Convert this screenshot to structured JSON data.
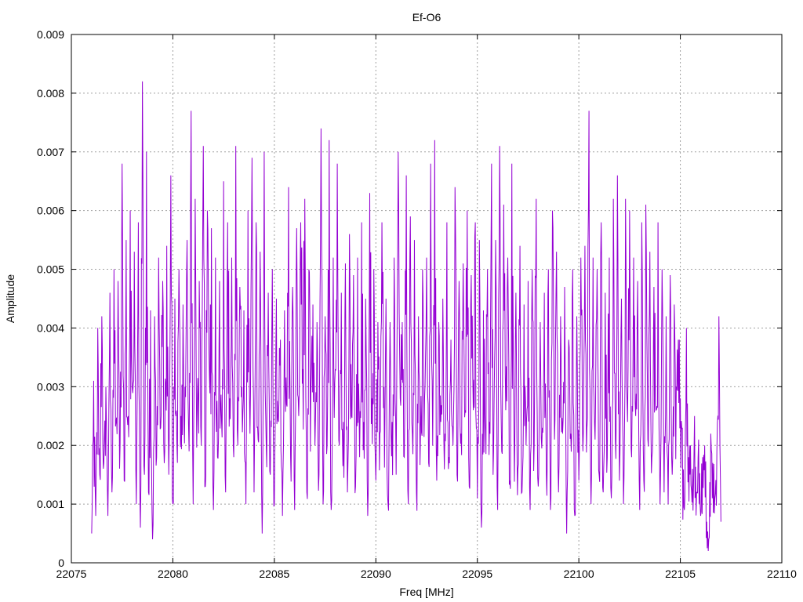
{
  "chart_data": {
    "type": "line",
    "title": "Ef-O6",
    "xlabel": "Freq [MHz]",
    "ylabel": "Amplitude",
    "xlim": [
      22075,
      22110
    ],
    "ylim": [
      0,
      0.009
    ],
    "x_ticks": [
      "22075",
      "22080",
      "22085",
      "22090",
      "22095",
      "22100",
      "22105",
      "22110"
    ],
    "y_ticks": [
      "0",
      "0.001",
      "0.002",
      "0.003",
      "0.004",
      "0.005",
      "0.006",
      "0.007",
      "0.008",
      "0.009"
    ],
    "grid": true,
    "series_color": "#9400d3",
    "series": [
      {
        "x_start": 22076.0,
        "x_step": 0.1,
        "values": [
          0.0005,
          0.0031,
          0.0008,
          0.004,
          0.0015,
          0.0042,
          0.0017,
          0.003,
          0.0008,
          0.0046,
          0.0012,
          0.005,
          0.0024,
          0.0048,
          0.002,
          0.0068,
          0.0014,
          0.0055,
          0.0025,
          0.006,
          0.003,
          0.0053,
          0.001,
          0.0058,
          0.0006,
          0.0082,
          0.0015,
          0.007,
          0.0012,
          0.0043,
          0.0004,
          0.0042,
          0.0018,
          0.0052,
          0.0023,
          0.0048,
          0.0019,
          0.0054,
          0.0015,
          0.0066,
          0.001,
          0.0045,
          0.002,
          0.005,
          0.0025,
          0.0044,
          0.003,
          0.0055,
          0.0019,
          0.0077,
          0.001,
          0.0062,
          0.0026,
          0.0048,
          0.002,
          0.0071,
          0.0013,
          0.006,
          0.0032,
          0.0057,
          0.0009,
          0.0052,
          0.0018,
          0.0048,
          0.0024,
          0.0065,
          0.0012,
          0.0058,
          0.0028,
          0.0052,
          0.0018,
          0.0071,
          0.002,
          0.0047,
          0.003,
          0.0043,
          0.001,
          0.006,
          0.0022,
          0.0069,
          0.0012,
          0.0058,
          0.0021,
          0.0053,
          0.0005,
          0.007,
          0.002,
          0.0046,
          0.0015,
          0.005,
          0.001,
          0.0045,
          0.0024,
          0.0038,
          0.0008,
          0.0043,
          0.0027,
          0.0064,
          0.0018,
          0.0047,
          0.0009,
          0.0057,
          0.0025,
          0.0058,
          0.0033,
          0.0062,
          0.0012,
          0.005,
          0.003,
          0.0044,
          0.002,
          0.0041,
          0.0015,
          0.0074,
          0.001,
          0.0042,
          0.002,
          0.0072,
          0.0009,
          0.0052,
          0.0033,
          0.0068,
          0.002,
          0.0046,
          0.0024,
          0.0051,
          0.0012,
          0.0056,
          0.0025,
          0.0049,
          0.0013,
          0.0052,
          0.0018,
          0.0058,
          0.0024,
          0.0045,
          0.0008,
          0.0063,
          0.0028,
          0.005,
          0.0014,
          0.0041,
          0.0022,
          0.0058,
          0.003,
          0.0045,
          0.001,
          0.0041,
          0.0024,
          0.0052,
          0.0015,
          0.007,
          0.0028,
          0.0041,
          0.0018,
          0.0066,
          0.001,
          0.0059,
          0.0022,
          0.0055,
          0.0012,
          0.0042,
          0.0022,
          0.005,
          0.0028,
          0.0052,
          0.0017,
          0.0068,
          0.002,
          0.0072,
          0.0014,
          0.0041,
          0.0024,
          0.0045,
          0.0022,
          0.0058,
          0.0018,
          0.0038,
          0.002,
          0.0064,
          0.0015,
          0.0048,
          0.0022,
          0.0051,
          0.0026,
          0.006,
          0.0013,
          0.0049,
          0.0026,
          0.0058,
          0.0011,
          0.0055,
          0.0006,
          0.0043,
          0.0022,
          0.005,
          0.0024,
          0.0068,
          0.0019,
          0.0055,
          0.0009,
          0.0071,
          0.0019,
          0.0061,
          0.0026,
          0.0052,
          0.0014,
          0.0068,
          0.0024,
          0.0046,
          0.0016,
          0.0054,
          0.0012,
          0.0044,
          0.002,
          0.0048,
          0.0009,
          0.005,
          0.002,
          0.0062,
          0.0013,
          0.0041,
          0.0023,
          0.0046,
          0.0015,
          0.005,
          0.0009,
          0.006,
          0.0021,
          0.0053,
          0.0012,
          0.0042,
          0.0022,
          0.0047,
          0.0005,
          0.0038,
          0.0022,
          0.005,
          0.0008,
          0.0042,
          0.0014,
          0.0052,
          0.0019,
          0.0054,
          0.0023,
          0.0077,
          0.001,
          0.0052,
          0.0021,
          0.005,
          0.0015,
          0.0058,
          0.0012,
          0.0046,
          0.0018,
          0.0052,
          0.0011,
          0.0062,
          0.0021,
          0.0066,
          0.0014,
          0.0045,
          0.001,
          0.0062,
          0.0024,
          0.006,
          0.0018,
          0.0052,
          0.0025,
          0.0048,
          0.0009,
          0.0058,
          0.0014,
          0.0061,
          0.0021,
          0.0053,
          0.0018,
          0.0047,
          0.0026,
          0.0058,
          0.001,
          0.005,
          0.0012,
          0.0042,
          0.001,
          0.0049,
          0.0015,
          0.0044,
          0.003,
          0.0038,
          0.0028,
          0.0023,
          0.0009,
          0.004,
          0.0018,
          0.002,
          0.0016,
          0.0025,
          0.0012,
          0.0021,
          0.0008,
          0.0018,
          0.002,
          0.0007,
          0.0004,
          0.0022,
          0.0017,
          0.0011,
          0.0019,
          0.0042,
          0.0007
        ]
      }
    ]
  }
}
